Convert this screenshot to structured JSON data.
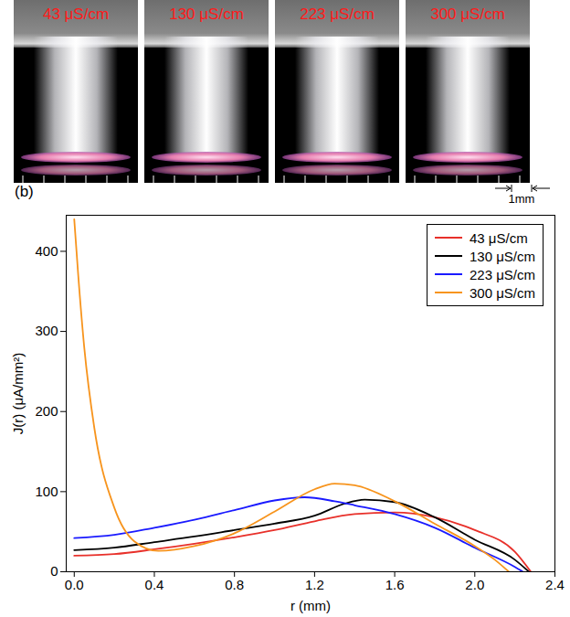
{
  "photos": {
    "labels": [
      "43 μS/cm",
      "130 μS/cm",
      "223 μS/cm",
      "300 μS/cm"
    ],
    "scale_bar": "1mm"
  },
  "chart_data": {
    "type": "line",
    "title": "(b)",
    "x_label": "r (mm)",
    "y_label": "J(r) (μA/mm²)",
    "xlim": [
      -0.04,
      2.4
    ],
    "xticks": [
      {
        "value": 0,
        "label": "0.0"
      },
      0.4,
      0.8,
      1.2,
      1.6,
      {
        "value": 2,
        "label": "2.0"
      },
      2.4
    ],
    "ylim": [
      0,
      445
    ],
    "yticks": [
      0,
      100,
      200,
      300,
      400
    ],
    "legend": "upper right",
    "series": [
      {
        "name": "43 μS/cm",
        "color": "#e8302a",
        "x": [
          0,
          0.2,
          0.4,
          0.6,
          0.8,
          1.0,
          1.2,
          1.4,
          1.6,
          1.8,
          2.0,
          2.2,
          2.28
        ],
        "values": [
          20,
          22,
          28,
          35,
          43,
          52,
          63,
          72,
          74,
          68,
          52,
          25,
          0
        ]
      },
      {
        "name": "130 μS/cm",
        "color": "#000000",
        "x": [
          0,
          0.2,
          0.4,
          0.6,
          0.8,
          1.0,
          1.2,
          1.35,
          1.45,
          1.6,
          1.8,
          2.0,
          2.2,
          2.27
        ],
        "values": [
          27,
          30,
          37,
          44,
          52,
          60,
          70,
          85,
          90,
          87,
          68,
          40,
          15,
          0
        ]
      },
      {
        "name": "223 μS/cm",
        "color": "#1a1aff",
        "x": [
          0,
          0.2,
          0.4,
          0.6,
          0.8,
          1.0,
          1.15,
          1.3,
          1.4,
          1.6,
          1.8,
          2.0,
          2.2,
          2.24
        ],
        "values": [
          42,
          46,
          55,
          65,
          77,
          89,
          93,
          88,
          83,
          72,
          55,
          30,
          6,
          0
        ]
      },
      {
        "name": "300 μS/cm",
        "color": "#f7941d",
        "x": [
          0,
          0.02,
          0.05,
          0.1,
          0.2,
          0.3,
          0.42,
          0.6,
          0.8,
          1.0,
          1.2,
          1.3,
          1.4,
          1.6,
          1.8,
          2.0,
          2.1,
          2.17
        ],
        "values": [
          440,
          370,
          280,
          180,
          80,
          38,
          26,
          32,
          48,
          75,
          103,
          110,
          108,
          88,
          60,
          32,
          15,
          0
        ]
      }
    ]
  }
}
